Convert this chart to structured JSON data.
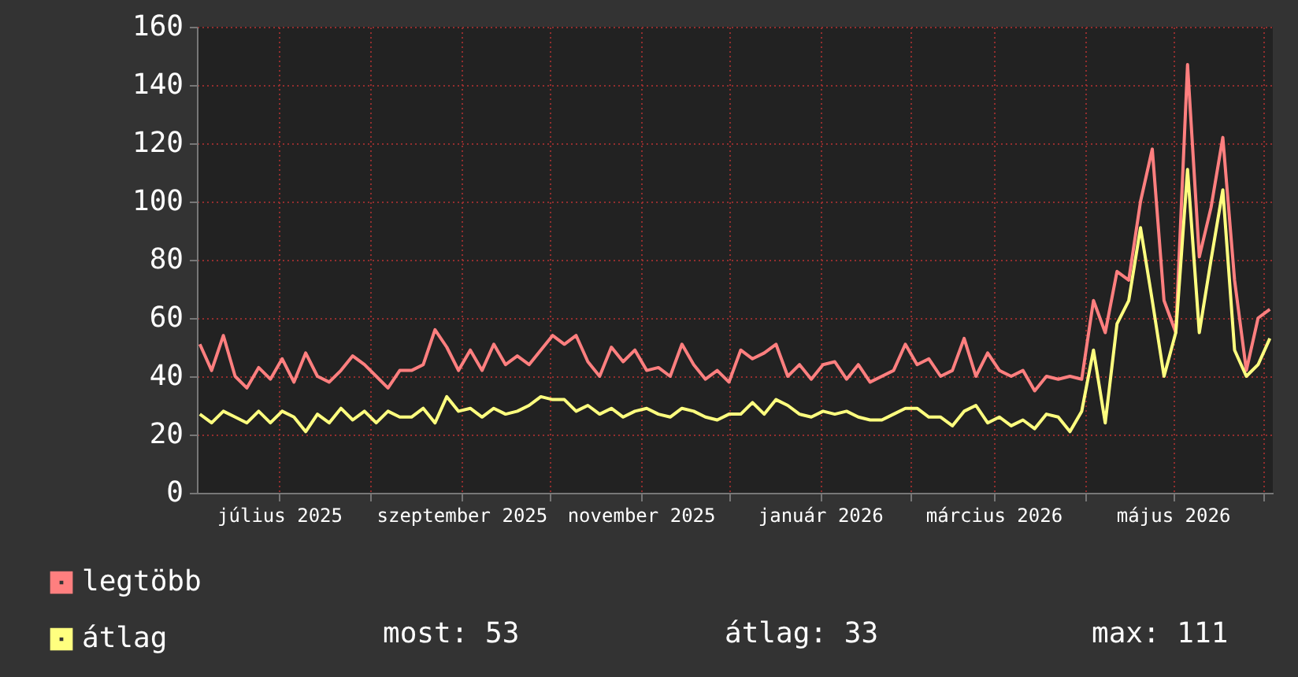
{
  "chart_data": {
    "type": "line",
    "x": [
      "2025-06-04",
      "2025-06-08",
      "2025-06-12",
      "2025-06-16",
      "2025-06-20",
      "2025-06-24",
      "2025-06-28",
      "2025-07-02",
      "2025-07-06",
      "2025-07-10",
      "2025-07-14",
      "2025-07-18",
      "2025-07-22",
      "2025-07-26",
      "2025-07-30",
      "2025-08-03",
      "2025-08-07",
      "2025-08-11",
      "2025-08-15",
      "2025-08-19",
      "2025-08-23",
      "2025-08-27",
      "2025-08-31",
      "2025-09-04",
      "2025-09-08",
      "2025-09-12",
      "2025-09-16",
      "2025-09-20",
      "2025-09-24",
      "2025-09-28",
      "2025-10-02",
      "2025-10-06",
      "2025-10-10",
      "2025-10-14",
      "2025-10-18",
      "2025-10-22",
      "2025-10-26",
      "2025-10-30",
      "2025-11-03",
      "2025-11-07",
      "2025-11-11",
      "2025-11-15",
      "2025-11-19",
      "2025-11-23",
      "2025-11-27",
      "2025-12-01",
      "2025-12-05",
      "2025-12-09",
      "2025-12-13",
      "2025-12-17",
      "2025-12-21",
      "2025-12-25",
      "2025-12-29",
      "2026-01-02",
      "2026-01-06",
      "2026-01-10",
      "2026-01-14",
      "2026-01-18",
      "2026-01-22",
      "2026-01-26",
      "2026-01-30",
      "2026-02-03",
      "2026-02-07",
      "2026-02-11",
      "2026-02-15",
      "2026-02-19",
      "2026-02-23",
      "2026-02-27",
      "2026-03-03",
      "2026-03-07",
      "2026-03-11",
      "2026-03-15",
      "2026-03-19",
      "2026-03-23",
      "2026-03-27",
      "2026-03-31",
      "2026-04-04",
      "2026-04-08",
      "2026-04-12",
      "2026-04-16",
      "2026-04-20",
      "2026-04-24",
      "2026-04-28",
      "2026-05-02",
      "2026-05-06",
      "2026-05-10",
      "2026-05-14",
      "2026-05-18",
      "2026-05-22",
      "2026-05-26",
      "2026-05-30",
      "2026-06-03"
    ],
    "series": [
      {
        "name": "legtöbb",
        "color": "#ff7f7f",
        "values": [
          51,
          42,
          54,
          40,
          36,
          43,
          39,
          46,
          38,
          48,
          40,
          38,
          42,
          47,
          44,
          40,
          36,
          42,
          42,
          44,
          56,
          50,
          42,
          49,
          42,
          51,
          44,
          47,
          44,
          49,
          54,
          51,
          54,
          45,
          40,
          50,
          45,
          49,
          42,
          43,
          40,
          51,
          44,
          39,
          42,
          38,
          49,
          46,
          48,
          51,
          40,
          44,
          39,
          44,
          45,
          39,
          44,
          38,
          40,
          42,
          51,
          44,
          46,
          40,
          42,
          53,
          40,
          48,
          42,
          40,
          42,
          35,
          40,
          39,
          40,
          39,
          66,
          55,
          76,
          73,
          100,
          118,
          66,
          55,
          147,
          81,
          98,
          122,
          73,
          42,
          60,
          63
        ]
      },
      {
        "name": "átlag",
        "color": "#ffff7f",
        "values": [
          27,
          24,
          28,
          26,
          24,
          28,
          24,
          28,
          26,
          21,
          27,
          24,
          29,
          25,
          28,
          24,
          28,
          26,
          26,
          29,
          24,
          33,
          28,
          29,
          26,
          29,
          27,
          28,
          30,
          33,
          32,
          32,
          28,
          30,
          27,
          29,
          26,
          28,
          29,
          27,
          26,
          29,
          28,
          26,
          25,
          27,
          27,
          31,
          27,
          32,
          30,
          27,
          26,
          28,
          27,
          28,
          26,
          25,
          25,
          27,
          29,
          29,
          26,
          26,
          23,
          28,
          30,
          24,
          26,
          23,
          25,
          22,
          27,
          26,
          21,
          28,
          49,
          24,
          58,
          66,
          91,
          66,
          40,
          55,
          111,
          55,
          80,
          104,
          49,
          40,
          44,
          53
        ]
      }
    ],
    "xlim": [
      "2025-06-03",
      "2026-06-04"
    ],
    "xticks": [
      {
        "value": "2025-07-01",
        "label": "július 2025"
      },
      {
        "value": "2025-08-01",
        "label": null
      },
      {
        "value": "2025-09-01",
        "label": "szeptember 2025"
      },
      {
        "value": "2025-10-01",
        "label": null
      },
      {
        "value": "2025-11-01",
        "label": "november 2025"
      },
      {
        "value": "2025-12-01",
        "label": null
      },
      {
        "value": "2026-01-01",
        "label": "január 2026"
      },
      {
        "value": "2026-02-01",
        "label": null
      },
      {
        "value": "2026-03-01",
        "label": "március 2026"
      },
      {
        "value": "2026-04-01",
        "label": null
      },
      {
        "value": "2026-05-01",
        "label": "május 2026"
      },
      {
        "value": "2026-06-01",
        "label": null
      }
    ],
    "ylim": [
      0,
      160
    ],
    "yticks": [
      0,
      20,
      40,
      60,
      80,
      100,
      120,
      140,
      160
    ],
    "grid": true,
    "legend": "bottom left",
    "marker": "none",
    "line_style": "solid",
    "annotations": [
      "most: 53",
      "átlag: 33",
      "max: 111"
    ]
  }
}
